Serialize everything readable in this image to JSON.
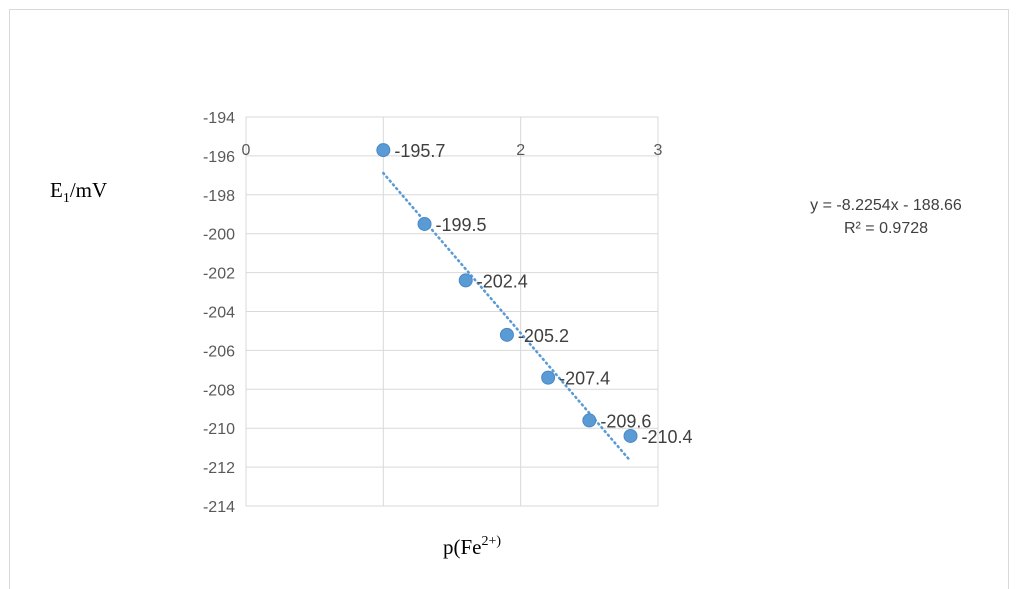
{
  "chart_data": {
    "type": "scatter",
    "title": "",
    "xlabel_main": "p(Fe",
    "xlabel_sup": "2+)",
    "ylabel_main": "E",
    "ylabel_sub": "1",
    "ylabel_rest": "/mV",
    "xlim": [
      0,
      3
    ],
    "ylim": [
      -214,
      -194
    ],
    "x_ticks": [
      "0",
      "1",
      "2",
      "3"
    ],
    "y_ticks": [
      "-194",
      "-196",
      "-198",
      "-200",
      "-202",
      "-204",
      "-206",
      "-208",
      "-210",
      "-212",
      "-214"
    ],
    "series": [
      {
        "x": [
          1.0,
          1.3,
          1.6,
          1.9,
          2.2,
          2.5,
          2.8
        ],
        "y": [
          -195.7,
          -199.5,
          -202.4,
          -205.2,
          -207.4,
          -209.6,
          -210.4
        ],
        "labels": [
          "-195.7",
          "-199.5",
          "-202.4",
          "-205.2",
          "-207.4",
          "-209.6",
          "-210.4"
        ],
        "color": "#5b9bd5"
      }
    ],
    "trendline": {
      "slope": -8.2254,
      "intercept": -188.66,
      "x_range": [
        1.0,
        2.8
      ],
      "color": "#5b9bd5",
      "equation": "y = -8.2254x - 188.66",
      "r2": "R² = 0.9728"
    },
    "gridlines": true
  }
}
